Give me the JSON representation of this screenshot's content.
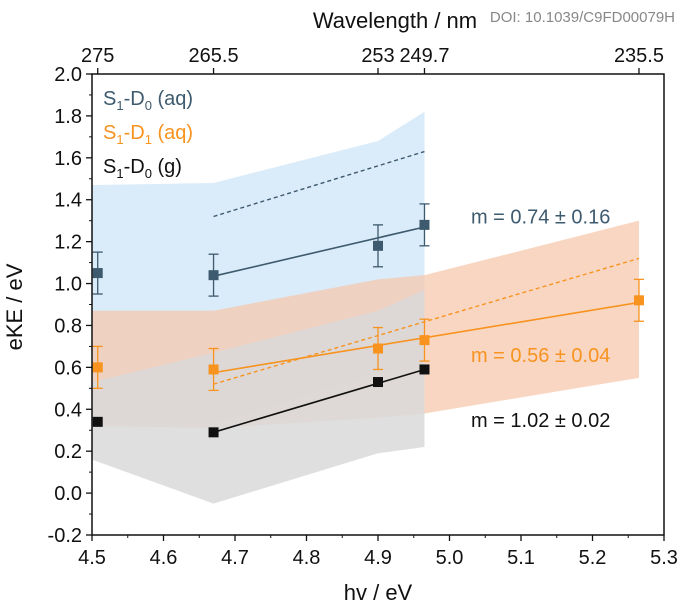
{
  "watermark": "DOI: 10.1039/C9FD00079H",
  "chart_data": {
    "type": "scatter",
    "xlabel": "hv / eV",
    "ylabel": "eKE / eV",
    "top_xlabel": "Wavelength / nm",
    "xlim": [
      4.5,
      5.3
    ],
    "ylim": [
      -0.2,
      2.0
    ],
    "x_ticks": [
      4.5,
      4.6,
      4.7,
      4.8,
      4.9,
      5.0,
      5.1,
      5.2,
      5.3
    ],
    "x_tick_labels": [
      "4.5",
      "4.6",
      "4.7",
      "4.8",
      "4.9",
      "5.0",
      "5.1",
      "5.2",
      "5.3"
    ],
    "y_ticks": [
      -0.2,
      0.0,
      0.2,
      0.4,
      0.6,
      0.8,
      1.0,
      1.2,
      1.4,
      1.6,
      1.8,
      2.0
    ],
    "y_tick_labels": [
      "-0.2",
      "0.0",
      "0.2",
      "0.4",
      "0.6",
      "0.8",
      "1.0",
      "1.2",
      "1.4",
      "1.6",
      "1.8",
      "2.0"
    ],
    "top_ticks": [
      {
        "label": "275",
        "x": 4.508
      },
      {
        "label": "265.5",
        "x": 4.67
      },
      {
        "label": "253",
        "x": 4.9
      },
      {
        "label": "249.7",
        "x": 4.965
      },
      {
        "label": "235.5",
        "x": 5.265
      }
    ],
    "grid": false,
    "legend_position": "top-left",
    "series": [
      {
        "label_main": "S",
        "label_sub1": "1",
        "label_mid": "-D",
        "label_sub2": "0",
        "label_tail": " (aq)",
        "color": "#3d5a6e",
        "band_color": "#d4e8f8",
        "band": {
          "x": [
            4.5,
            4.67,
            4.9,
            4.965
          ],
          "upper": [
            1.47,
            1.48,
            1.68,
            1.82
          ],
          "lower": [
            0.33,
            0.33,
            0.57,
            0.6
          ]
        },
        "x": [
          4.508,
          4.67,
          4.9,
          4.965
        ],
        "y": [
          1.05,
          1.04,
          1.18,
          1.28
        ],
        "err": [
          0.1,
          0.1,
          0.1,
          0.1
        ],
        "fit_x": [
          4.67,
          4.965
        ],
        "fit_y": [
          1.035,
          1.27
        ],
        "dashed_x": [
          4.67,
          4.965
        ],
        "dashed_y": [
          1.32,
          1.63
        ]
      },
      {
        "label_main": "S",
        "label_sub1": "1",
        "label_mid": "-D",
        "label_sub2": "1",
        "label_tail": " (aq)",
        "color": "#f7931e",
        "band_color": "#f5c8ad",
        "band": {
          "x": [
            4.5,
            4.67,
            4.9,
            4.965,
            5.265
          ],
          "upper": [
            0.87,
            0.87,
            1.02,
            1.04,
            1.3
          ],
          "lower": [
            0.32,
            0.31,
            0.36,
            0.38,
            0.55
          ]
        },
        "x": [
          4.508,
          4.67,
          4.9,
          4.965,
          5.265
        ],
        "y": [
          0.6,
          0.59,
          0.69,
          0.73,
          0.92
        ],
        "err": [
          0.1,
          0.1,
          0.1,
          0.1,
          0.1
        ],
        "fit_x": [
          4.67,
          5.265
        ],
        "fit_y": [
          0.575,
          0.91
        ],
        "dashed_x": [
          4.67,
          5.265
        ],
        "dashed_y": [
          0.52,
          1.12
        ]
      },
      {
        "label_main": "S",
        "label_sub1": "1",
        "label_mid": "-D",
        "label_sub2": "0",
        "label_tail": " (g)",
        "color": "#111111",
        "band_color": "#d9d9d9",
        "band": {
          "x": [
            4.5,
            4.67,
            4.9,
            4.965
          ],
          "upper": [
            0.53,
            0.67,
            0.87,
            0.97
          ],
          "lower": [
            0.16,
            -0.05,
            0.19,
            0.22
          ]
        },
        "x": [
          4.508,
          4.67,
          4.9,
          4.965
        ],
        "y": [
          0.34,
          0.29,
          0.53,
          0.59
        ],
        "err": [
          0,
          0,
          0,
          0
        ],
        "fit_x": [
          4.67,
          4.965
        ],
        "fit_y": [
          0.29,
          0.59
        ],
        "dashed_x": [],
        "dashed_y": []
      }
    ],
    "annotations": [
      {
        "text": "m = 0.74 ± 0.16",
        "x": 5.03,
        "y": 1.32,
        "color": "#3d5a6e"
      },
      {
        "text": "m = 0.56 ± 0.04",
        "x": 5.03,
        "y": 0.66,
        "color": "#f7931e"
      },
      {
        "text": "m = 1.02 ± 0.02",
        "x": 5.03,
        "y": 0.35,
        "color": "#111111"
      }
    ]
  }
}
